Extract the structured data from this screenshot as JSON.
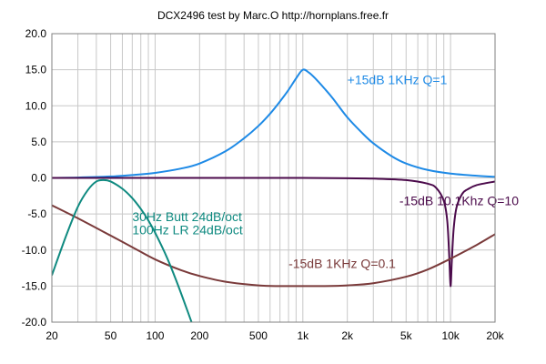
{
  "chart_data": {
    "type": "line",
    "title": "DCX2496 test by Marc.O    http://hornplans.free.fr",
    "xlabel": "",
    "ylabel": "",
    "xscale": "log",
    "xlim": [
      20,
      20000
    ],
    "ylim": [
      -20,
      20
    ],
    "grid": true,
    "x_tick_labels": [
      "20",
      "50",
      "100",
      "200",
      "500",
      "1k",
      "2k",
      "5k",
      "10k",
      "20k"
    ],
    "x_tick_values": [
      20,
      50,
      100,
      200,
      500,
      1000,
      2000,
      5000,
      10000,
      20000
    ],
    "y_tick_labels": [
      "20.0",
      "15.0",
      "10.0",
      "5.0",
      "0.0",
      "-5.0",
      "-10.0",
      "-15.0",
      "-20.0"
    ],
    "y_tick_values": [
      20,
      15,
      10,
      5,
      0,
      -5,
      -10,
      -15,
      -20
    ],
    "series": [
      {
        "color": "#1e8ae6",
        "x": [
          20,
          30,
          50,
          70,
          100,
          150,
          200,
          300,
          400,
          500,
          600,
          700,
          800,
          900,
          1000,
          1100,
          1200,
          1400,
          1600,
          2000,
          2500,
          3000,
          4000,
          5000,
          7000,
          10000,
          15000,
          20000
        ],
        "y": [
          0,
          0.05,
          0.2,
          0.4,
          0.7,
          1.3,
          2.0,
          3.7,
          5.5,
          7.2,
          8.9,
          10.6,
          12.2,
          13.8,
          15.0,
          14.6,
          13.9,
          12.4,
          11.0,
          8.4,
          6.3,
          4.8,
          3.0,
          2.0,
          1.1,
          0.6,
          0.3,
          0.15
        ]
      },
      {
        "color": "#4b0a4b",
        "x": [
          20,
          100,
          500,
          1000,
          2000,
          3000,
          5000,
          7000,
          8000,
          9000,
          9500,
          9800,
          10000,
          10200,
          10500,
          11000,
          12000,
          13000,
          15000,
          20000
        ],
        "y": [
          0,
          0,
          0,
          0,
          -0.05,
          -0.1,
          -0.3,
          -0.8,
          -1.4,
          -3.2,
          -6.0,
          -11.0,
          -15.0,
          -11.5,
          -7.0,
          -4.0,
          -2.2,
          -1.6,
          -1.0,
          -0.5
        ]
      },
      {
        "color": "#7a3a3a",
        "x": [
          20,
          30,
          50,
          70,
          100,
          150,
          200,
          300,
          500,
          700,
          1000,
          1400,
          2000,
          3000,
          5000,
          7000,
          10000,
          15000,
          20000
        ],
        "y": [
          -3.8,
          -5.6,
          -8.0,
          -9.6,
          -11.3,
          -12.8,
          -13.6,
          -14.4,
          -14.9,
          -15.0,
          -15.0,
          -15.0,
          -14.9,
          -14.6,
          -13.7,
          -12.7,
          -11.2,
          -9.3,
          -7.8
        ]
      },
      {
        "color": "#0f8a80",
        "x": [
          20,
          25,
          30,
          35,
          40,
          45,
          50,
          60,
          70,
          80,
          90,
          100,
          120,
          140,
          160,
          180
        ],
        "y": [
          -13.5,
          -8.0,
          -4.0,
          -1.7,
          -0.5,
          -0.3,
          -0.5,
          -1.5,
          -2.8,
          -4.3,
          -5.9,
          -7.6,
          -11.0,
          -14.4,
          -17.6,
          -20.5
        ]
      }
    ],
    "annotations": [
      {
        "text": "+15dB 1KHz Q=1",
        "x": 2000,
        "y": 13.0,
        "color": "#1e8ae6"
      },
      {
        "text": "-15dB 10.1Khz Q=10",
        "x": 4500,
        "y": -3.8,
        "color": "#4b0a4b"
      },
      {
        "text": "30Hz Butt 24dB/oct",
        "x": 70,
        "y": -6.0,
        "color": "#0f8a80"
      },
      {
        "text": "100Hz LR 24dB/oct",
        "x": 70,
        "y": -7.8,
        "color": "#0f8a80"
      },
      {
        "text": "-15dB 1KHz Q=0.1",
        "x": 800,
        "y": -12.5,
        "color": "#7a3a3a"
      }
    ]
  }
}
